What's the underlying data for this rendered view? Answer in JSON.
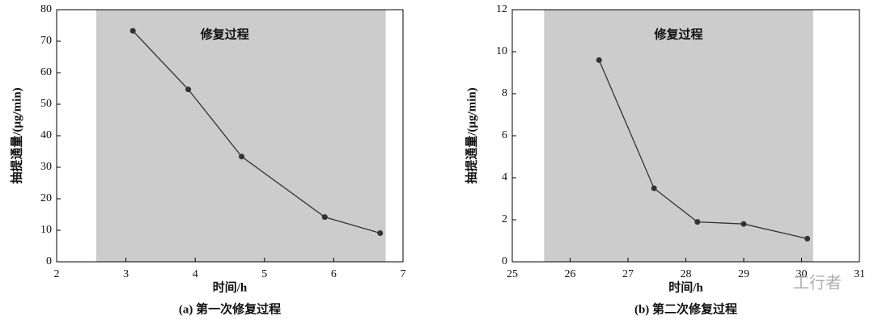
{
  "chart_data": [
    {
      "type": "line",
      "xlabel": "时间/h",
      "ylabel": "抽提通量/(μg/min)",
      "caption": "(a)  第一次修复过程",
      "annotation": "修复过程",
      "shade": [
        2.57,
        6.75
      ],
      "shade_color": "#cccccc",
      "x": [
        3.1,
        3.9,
        4.67,
        5.87,
        6.67
      ],
      "series": [
        {
          "color": "#333333",
          "values": [
            73.3,
            54.7,
            33.4,
            14.2,
            9.1
          ]
        }
      ],
      "xlim": [
        2,
        7
      ],
      "xticks": [
        2,
        3,
        4,
        5,
        6,
        7
      ],
      "ylim": [
        0,
        80
      ],
      "yticks": [
        0,
        10,
        20,
        30,
        40,
        50,
        60,
        70,
        80
      ]
    },
    {
      "type": "line",
      "xlabel": "时间/h",
      "ylabel": "抽提通量/(μg/min)",
      "caption": "(b)  第二次修复过程",
      "annotation": "修复过程",
      "shade": [
        25.55,
        30.2
      ],
      "shade_color": "#cccccc",
      "x": [
        26.5,
        27.45,
        28.2,
        29.0,
        30.1
      ],
      "series": [
        {
          "color": "#333333",
          "values": [
            9.6,
            3.5,
            1.9,
            1.8,
            1.1
          ]
        }
      ],
      "xlim": [
        25,
        31
      ],
      "xticks": [
        25,
        26,
        27,
        28,
        29,
        30,
        31
      ],
      "ylim": [
        0,
        12
      ],
      "yticks": [
        0,
        2,
        4,
        6,
        8,
        10,
        12
      ],
      "watermark": "工行者"
    }
  ]
}
